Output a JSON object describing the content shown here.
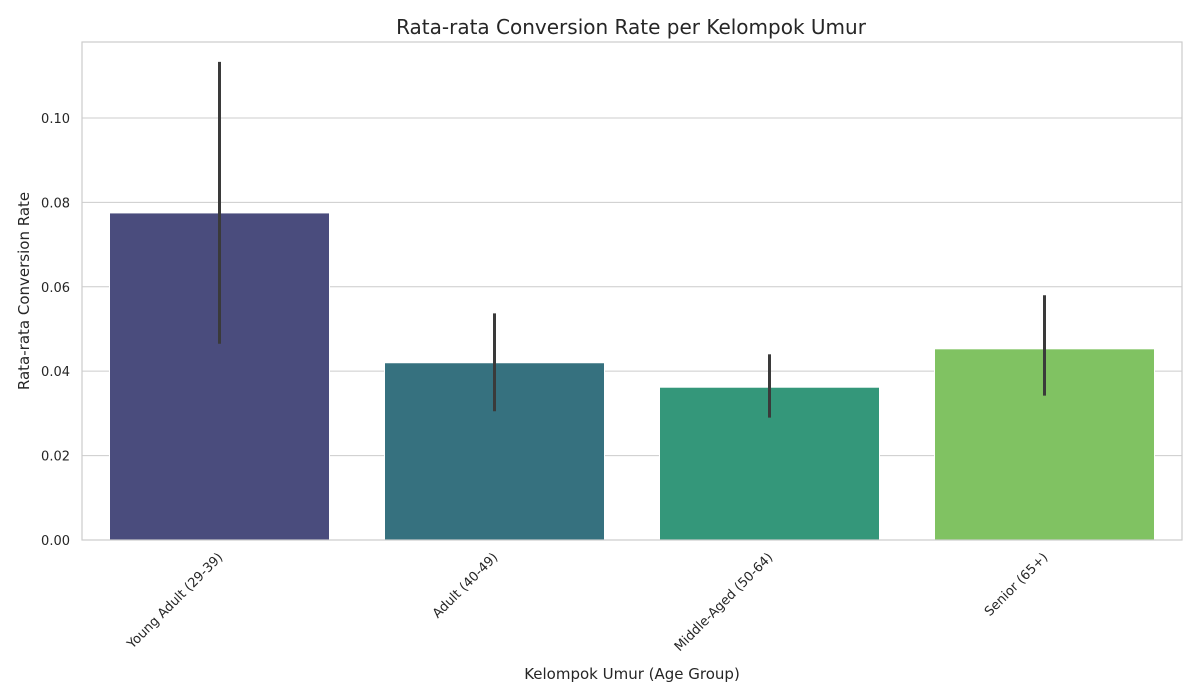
{
  "chart_data": {
    "type": "bar",
    "title": "Rata-rata Conversion Rate per Kelompok Umur",
    "xlabel": "Kelompok Umur (Age Group)",
    "ylabel": "Rata-rata Conversion Rate",
    "categories": [
      "Young Adult (29-39)",
      "Adult (40-49)",
      "Middle-Aged (50-64)",
      "Senior (65+)"
    ],
    "values": [
      0.0775,
      0.042,
      0.0362,
      0.0453
    ],
    "error_bars": [
      {
        "low": 0.0465,
        "high": 0.1133
      },
      {
        "low": 0.0305,
        "high": 0.0537
      },
      {
        "low": 0.029,
        "high": 0.044
      },
      {
        "low": 0.0342,
        "high": 0.058
      }
    ],
    "colors": [
      "#4a4c7d",
      "#36717f",
      "#34977a",
      "#80c262"
    ],
    "ylim": [
      0,
      0.118
    ],
    "yticks": [
      0.0,
      0.02,
      0.04,
      0.06,
      0.08,
      0.1
    ],
    "ytick_labels": [
      "0.00",
      "0.02",
      "0.04",
      "0.06",
      "0.08",
      "0.10"
    ],
    "grid": "horizontal",
    "legend": "none"
  }
}
